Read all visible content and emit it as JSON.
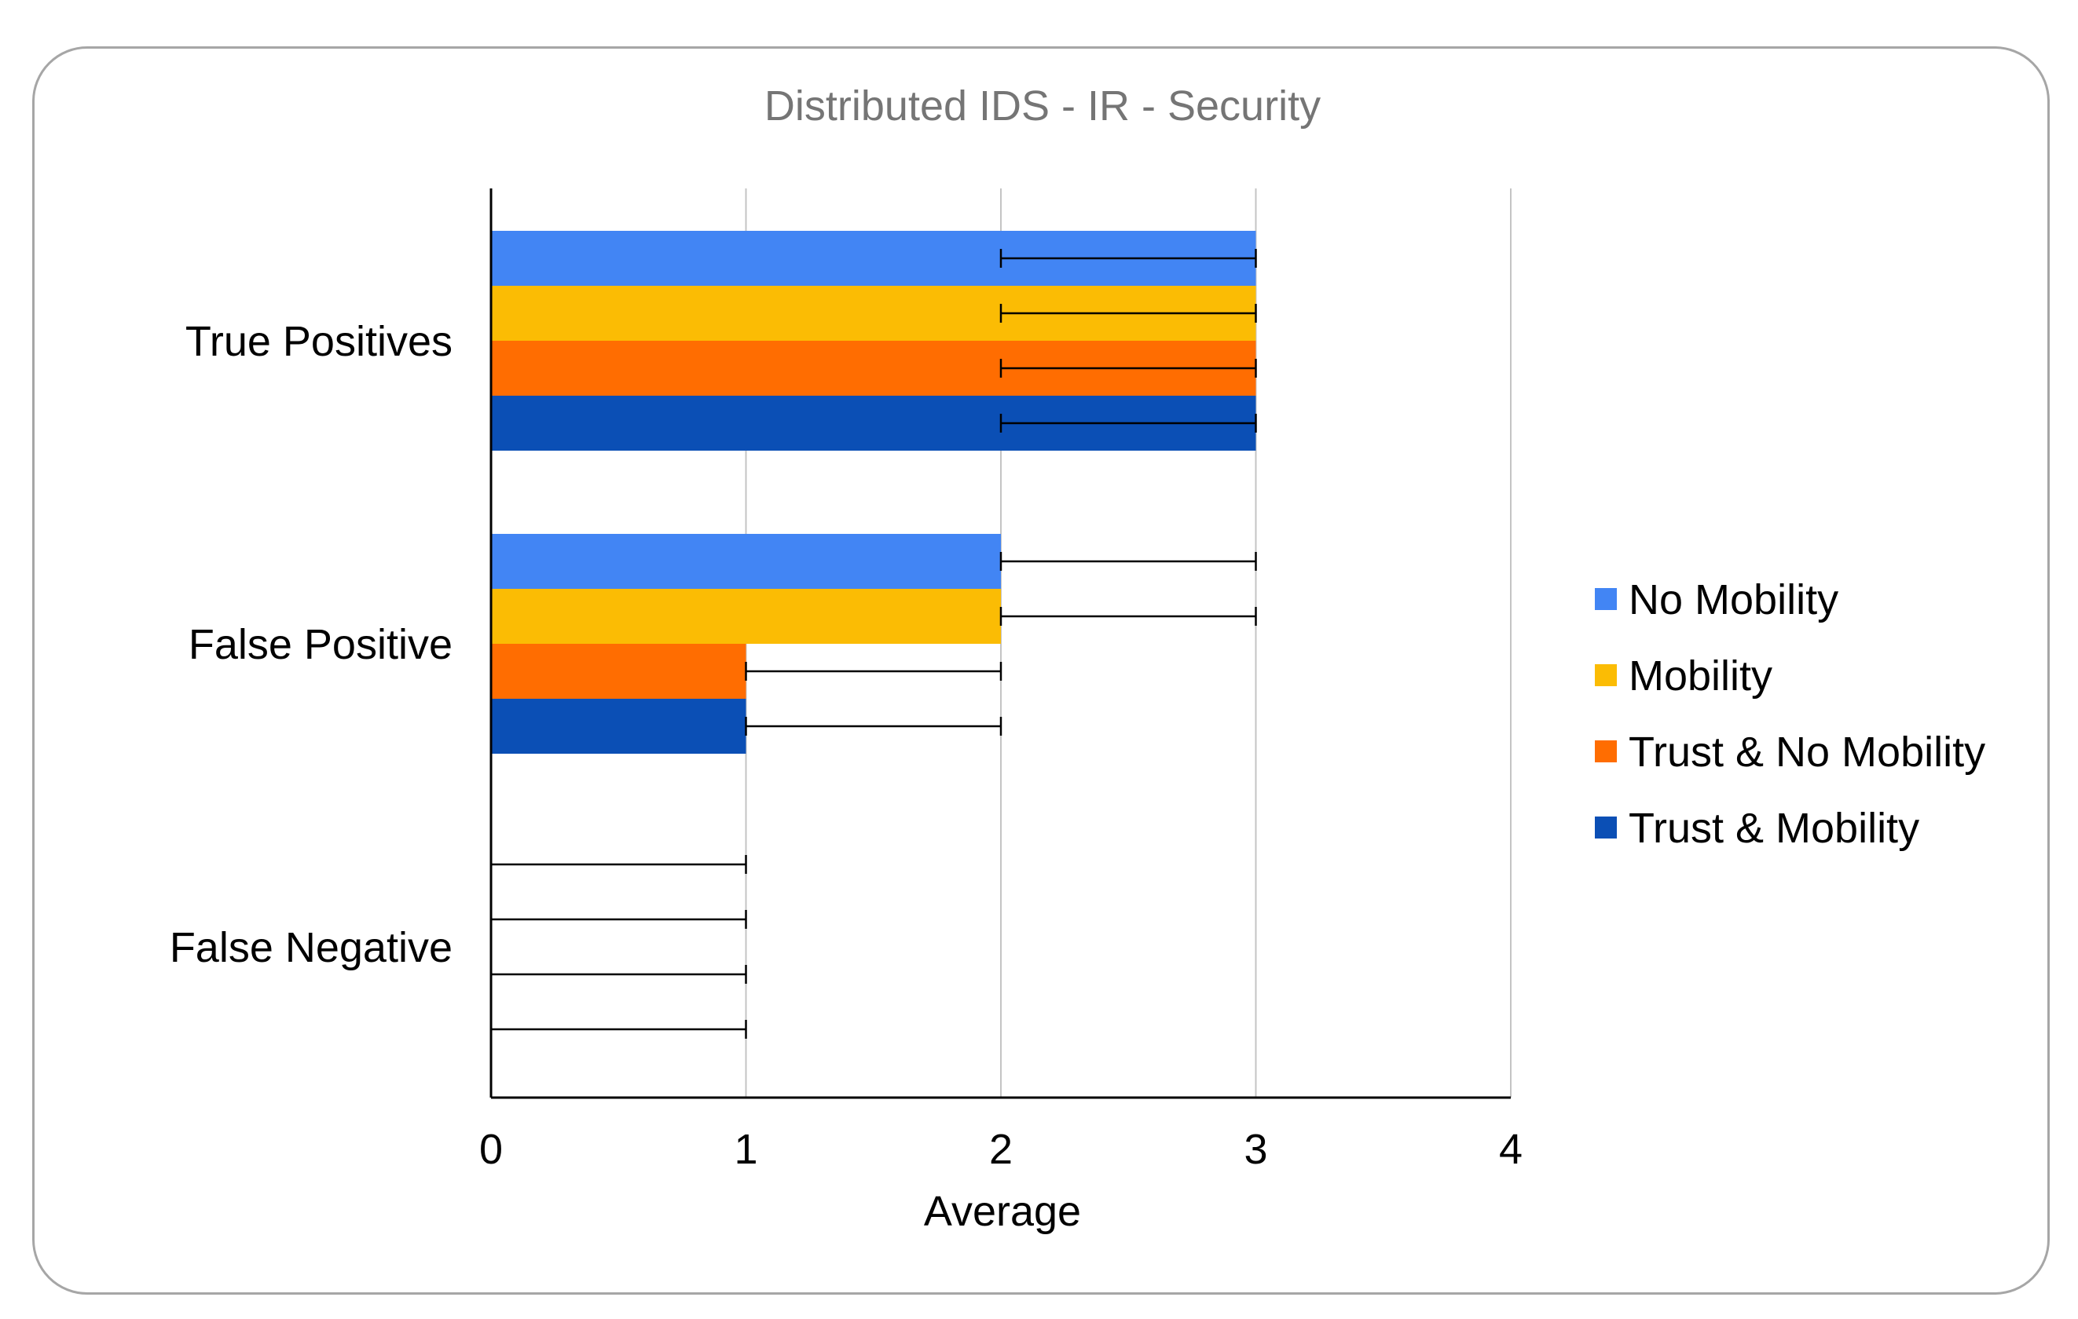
{
  "chart_data": {
    "type": "bar",
    "orientation": "horizontal",
    "title": "Distributed IDS  - IR - Security",
    "xlabel": "Average",
    "ylabel": "",
    "xlim": [
      0,
      4
    ],
    "x_ticks": [
      "0",
      "1",
      "2",
      "3",
      "4"
    ],
    "grid": "vertical",
    "legend_position": "right",
    "categories": [
      "True Positives",
      "False Positive",
      "False Negative"
    ],
    "series": [
      {
        "name": "No Mobility",
        "color": "#4285f4",
        "values": [
          3,
          2,
          0
        ],
        "error_minus": [
          1,
          0,
          0
        ],
        "error_plus": [
          0,
          1,
          1
        ]
      },
      {
        "name": "Mobility",
        "color": "#fbbc04",
        "values": [
          3,
          2,
          0
        ],
        "error_minus": [
          1,
          0,
          0
        ],
        "error_plus": [
          0,
          1,
          1
        ]
      },
      {
        "name": "Trust & No Mobility",
        "color": "#ff6d01",
        "values": [
          3,
          1,
          0
        ],
        "error_minus": [
          1,
          0,
          0
        ],
        "error_plus": [
          0,
          1,
          1
        ]
      },
      {
        "name": "Trust & Mobility",
        "color": "#0b4fb5",
        "values": [
          3,
          1,
          0
        ],
        "error_minus": [
          1,
          0,
          0
        ],
        "error_plus": [
          0,
          1,
          1
        ]
      }
    ]
  }
}
